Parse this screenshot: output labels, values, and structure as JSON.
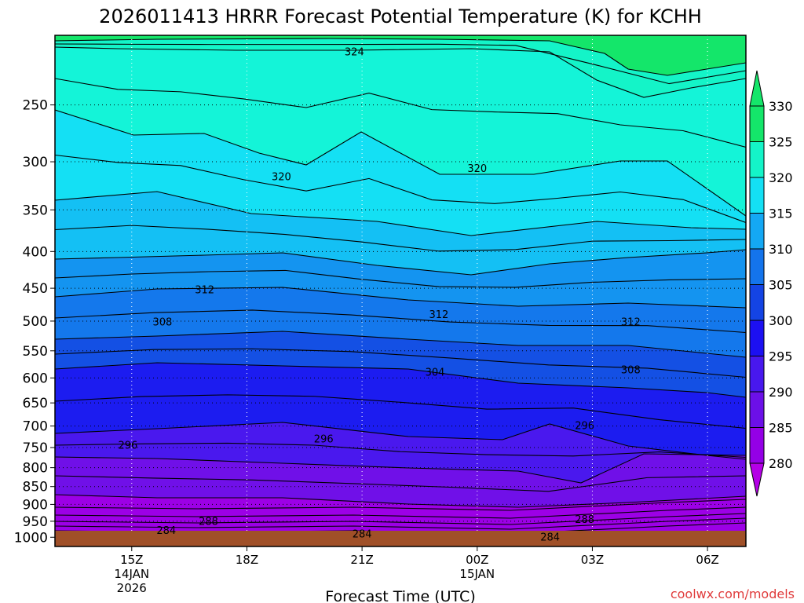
{
  "chart_data": {
    "type": "heatmap",
    "title": "2026011413 HRRR Forecast Potential Temperature (K) for KCHH",
    "xlabel": "Forecast Time (UTC)",
    "ylabel": "",
    "x_ticks": [
      {
        "label": "15Z",
        "hour": 15,
        "sub": [
          "14JAN",
          "2026"
        ]
      },
      {
        "label": "18Z",
        "hour": 18,
        "sub": []
      },
      {
        "label": "21Z",
        "hour": 21,
        "sub": []
      },
      {
        "label": "00Z",
        "hour": 24,
        "sub": [
          "15JAN"
        ]
      },
      {
        "label": "03Z",
        "hour": 27,
        "sub": []
      },
      {
        "label": "06Z",
        "hour": 30,
        "sub": []
      }
    ],
    "xlim": [
      13,
      31
    ],
    "y_ticks": [
      250,
      300,
      350,
      400,
      450,
      500,
      550,
      600,
      650,
      700,
      750,
      800,
      850,
      900,
      950,
      1000
    ],
    "ylim_hpa": [
      200,
      1030
    ],
    "log_pressure_axis": true,
    "colorbar": {
      "ticks": [
        280,
        285,
        290,
        295,
        300,
        305,
        310,
        315,
        320,
        325,
        330
      ],
      "colors": [
        "#b400e6",
        "#9400e6",
        "#6c10e8",
        "#4818ee",
        "#1c10f2",
        "#1444e4",
        "#1474ec",
        "#14a8f4",
        "#14e0f4",
        "#14f4c8",
        "#14e66a"
      ],
      "extend": "both"
    },
    "contour_labels": [
      {
        "value": "324",
        "hour": 20.8,
        "hpa": 211
      },
      {
        "value": "320",
        "hour": 18.9,
        "hpa": 315
      },
      {
        "value": "320",
        "hour": 24.0,
        "hpa": 307
      },
      {
        "value": "312",
        "hour": 16.9,
        "hpa": 453
      },
      {
        "value": "312",
        "hour": 23.0,
        "hpa": 490
      },
      {
        "value": "312",
        "hour": 28.0,
        "hpa": 502
      },
      {
        "value": "308",
        "hour": 15.8,
        "hpa": 502
      },
      {
        "value": "308",
        "hour": 28.0,
        "hpa": 585
      },
      {
        "value": "304",
        "hour": 22.9,
        "hpa": 590
      },
      {
        "value": "296",
        "hour": 14.9,
        "hpa": 745
      },
      {
        "value": "296",
        "hour": 20.0,
        "hpa": 730
      },
      {
        "value": "296",
        "hour": 26.8,
        "hpa": 700
      },
      {
        "value": "288",
        "hour": 17.0,
        "hpa": 952
      },
      {
        "value": "288",
        "hour": 26.8,
        "hpa": 945
      },
      {
        "value": "284",
        "hour": 15.9,
        "hpa": 980
      },
      {
        "value": "284",
        "hour": 21.0,
        "hpa": 990
      },
      {
        "value": "284",
        "hour": 25.9,
        "hpa": 1001
      }
    ],
    "grid": true,
    "legend": "colorbar-right"
  },
  "credit": "coolwx.com/models"
}
